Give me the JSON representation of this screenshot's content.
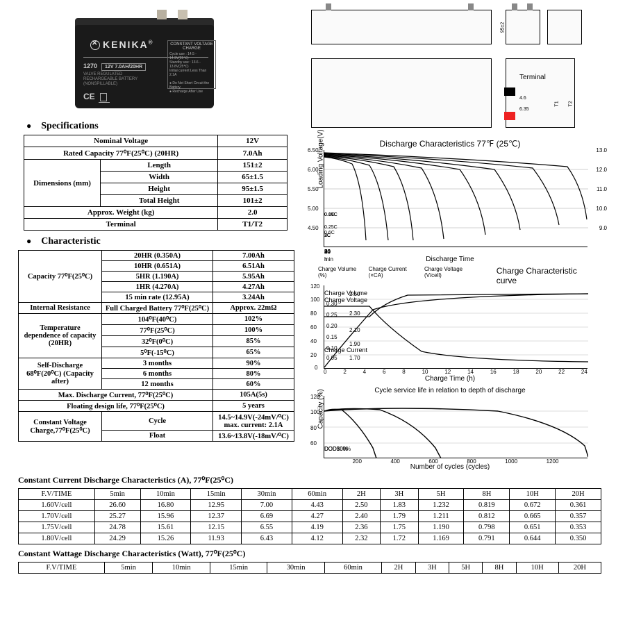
{
  "product": {
    "brand": "KENIKA",
    "model": "1270",
    "model_spec": "12V 7.0AH/20HR",
    "sub1": "VALVE REGULATED",
    "sub2": "RECHARGEABLE BATTERY (NONSPILLABLE)",
    "charge_box_title": "CONSTANT VOLTAGE CHARGE",
    "ce": "CE"
  },
  "headings": {
    "specifications": "Specifications",
    "characteristic": "Characteristic"
  },
  "spec_table": {
    "rows": [
      [
        "Nominal Voltage",
        "",
        "12V"
      ],
      [
        "Rated Capacity 77⁰F(25⁰C)    (20HR)",
        "",
        "7.0Ah"
      ],
      [
        "Dimensions (mm)",
        "Length",
        "151±2"
      ],
      [
        "",
        "Width",
        "65±1.5"
      ],
      [
        "",
        "Height",
        "95±1.5"
      ],
      [
        "",
        "Total Height",
        "101±2"
      ],
      [
        "Approx. Weight    (kg)",
        "",
        "2.0"
      ],
      [
        "Terminal",
        "",
        "T1/T2"
      ]
    ]
  },
  "char_table": {
    "rows": [
      [
        "Capacity 77⁰F(25⁰C)",
        "20HR (0.350A)",
        "7.00Ah"
      ],
      [
        "",
        "10HR (0.651A)",
        "6.51Ah"
      ],
      [
        "",
        "5HR (1.190A)",
        "5.95Ah"
      ],
      [
        "",
        "1HR (4.270A)",
        "4.27Ah"
      ],
      [
        "",
        "15 min rate (12.95A)",
        "3.24Ah"
      ],
      [
        "Internal Resistance",
        "Full Charged Battery 77⁰F(25⁰C)",
        "Approx. 22mΩ"
      ],
      [
        "Temperature dependence of capacity (20HR)",
        "104⁰F(40⁰C)",
        "102%"
      ],
      [
        "",
        "77⁰F(25⁰C)",
        "100%"
      ],
      [
        "",
        "32⁰F(0⁰C)",
        "85%"
      ],
      [
        "",
        "5⁰F(-15⁰C)",
        "65%"
      ],
      [
        "Self-Discharge 68⁰F(20⁰C) (Capacity after)",
        "3 months",
        "90%"
      ],
      [
        "",
        "6 months",
        "80%"
      ],
      [
        "",
        "12 months",
        "60%"
      ],
      [
        "Max. Discharge Current, 77⁰F(25⁰C)",
        "",
        "105A(5s)"
      ],
      [
        "Floating design life, 77⁰F(25⁰C)",
        "",
        "5 years"
      ],
      [
        "Constant Voltage Charge,77⁰F(25⁰C)",
        "Cycle",
        "14.5~14.9V(-24mV/⁰C) max. current: 2.1A"
      ],
      [
        "",
        "Float",
        "13.6~13.8V(-18mV/⁰C)"
      ]
    ]
  },
  "terminal_label": "Terminal",
  "chart1": {
    "title": "Discharge Characteristics 77℉ (25℃)",
    "ylabel": "Loading Voltage(V)",
    "xlabel": "Discharge Time",
    "y_left": [
      "6.50",
      "6.00",
      "5.50",
      "5.00",
      "4.50"
    ],
    "y_right": [
      "13.0",
      "12.0",
      "11.0",
      "10.0",
      "9.0"
    ],
    "x_ticks_min": [
      "1",
      "2",
      "3",
      "5",
      "10",
      "20",
      "30",
      "60"
    ],
    "x_ticks_h": [
      "2",
      "3",
      "5",
      "10",
      "20",
      "24"
    ],
    "x_unit1": "min",
    "x_unit2": "h",
    "curve_labels": [
      "3C",
      "2C",
      "1C",
      "0.6C",
      "0.25C",
      "0.17C",
      "0.1C",
      "0.05C"
    ]
  },
  "chart2": {
    "title": "Charge Characteristic curve",
    "legend_left": [
      "Charge Volume (%)",
      "Charge Current (×CA)",
      "Charge Voltage (V/cell)"
    ],
    "xlabel": "Charge Time (h)",
    "left_ticks": [
      "120",
      "100",
      "80",
      "60",
      "40",
      "20",
      "0"
    ],
    "mid_ticks": [
      "0.30",
      "0.25",
      "0.20",
      "0.15",
      "0.10",
      "0.05",
      "0.00"
    ],
    "right_ticks": [
      "2.50",
      "2.30",
      "2.10",
      "1.90",
      "1.70"
    ],
    "x_ticks": [
      "0",
      "2",
      "4",
      "6",
      "8",
      "10",
      "12",
      "14",
      "16",
      "18",
      "20",
      "22",
      "24"
    ],
    "lines": [
      "Charge Voltage",
      "Charge Volume",
      "Charge Current"
    ]
  },
  "chart3": {
    "title": "Cycle service life in relation to depth of discharge",
    "ylabel": "Capacity (%)",
    "xlabel": "Number of cycles (cycles)",
    "y_ticks": [
      "120",
      "100",
      "80",
      "60"
    ],
    "x_ticks": [
      "200",
      "400",
      "600",
      "800",
      "1000",
      "1200"
    ],
    "curve_labels": [
      "DOD100%",
      "DOD50%",
      "DOD30%"
    ]
  },
  "cc_table": {
    "title": "Constant Current Discharge Characteristics   (A), 77⁰F(25⁰C)",
    "header": [
      "F.V/TIME",
      "5min",
      "10min",
      "15min",
      "30min",
      "60min",
      "2H",
      "3H",
      "5H",
      "8H",
      "10H",
      "20H"
    ],
    "rows": [
      [
        "1.60V/cell",
        "26.60",
        "16.80",
        "12.95",
        "7.00",
        "4.43",
        "2.50",
        "1.83",
        "1.232",
        "0.819",
        "0.672",
        "0.361"
      ],
      [
        "1.70V/cell",
        "25.27",
        "15.96",
        "12.37",
        "6.69",
        "4.27",
        "2.40",
        "1.79",
        "1.211",
        "0.812",
        "0.665",
        "0.357"
      ],
      [
        "1.75V/cell",
        "24.78",
        "15.61",
        "12.15",
        "6.55",
        "4.19",
        "2.36",
        "1.75",
        "1.190",
        "0.798",
        "0.651",
        "0.353"
      ],
      [
        "1.80V/cell",
        "24.29",
        "15.26",
        "11.93",
        "6.43",
        "4.12",
        "2.32",
        "1.72",
        "1.169",
        "0.791",
        "0.644",
        "0.350"
      ]
    ]
  },
  "cw_table": {
    "title": "Constant Wattage Discharge Characteristics   (Watt), 77⁰F(25⁰C)",
    "header": [
      "F.V/TIME",
      "5min",
      "10min",
      "15min",
      "30min",
      "60min",
      "2H",
      "3H",
      "5H",
      "8H",
      "10H",
      "20H"
    ]
  },
  "colors": {
    "line": "#000000",
    "bg": "#ffffff"
  }
}
